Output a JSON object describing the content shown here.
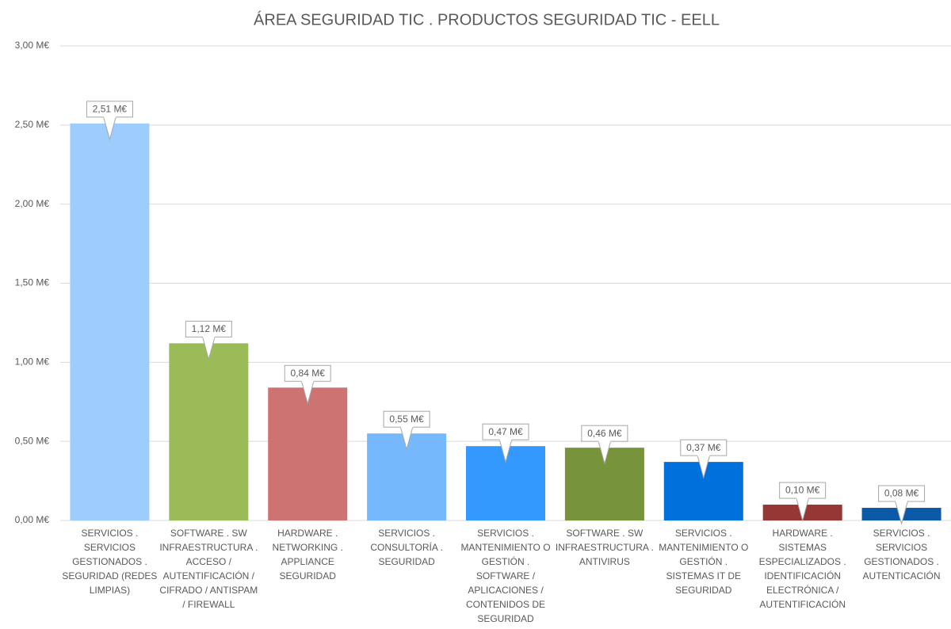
{
  "chart_data": {
    "type": "bar",
    "title": "ÁREA SEGURIDAD TIC . PRODUCTOS SEGURIDAD TIC - EELL",
    "categories": [
      "SERVICIOS . SERVICIOS GESTIONADOS . SEGURIDAD (REDES LIMPIAS)",
      "SOFTWARE . SW INFRAESTRUCTURA . ACCESO / AUTENTIFICACIÓN / CIFRADO / ANTISPAM / FIREWALL",
      "HARDWARE . NETWORKING . APPLIANCE SEGURIDAD",
      "SERVICIOS . CONSULTORÍA . SEGURIDAD",
      "SERVICIOS . MANTENIMIENTO O GESTIÓN . SOFTWARE / APLICACIONES / CONTENIDOS DE SEGURIDAD",
      "SOFTWARE . SW INFRAESTRUCTURA . ANTIVIRUS",
      "SERVICIOS . MANTENIMIENTO O GESTIÓN . SISTEMAS IT DE SEGURIDAD",
      "HARDWARE . SISTEMAS ESPECIALIZADOS . IDENTIFICACIÓN ELECTRÓNICA / AUTENTIFICACIÓN",
      "SERVICIOS . SERVICIOS GESTIONADOS . AUTENTICACIÓN"
    ],
    "values": [
      2.51,
      1.12,
      0.84,
      0.55,
      0.47,
      0.46,
      0.37,
      0.1,
      0.08
    ],
    "value_labels": [
      "2,51 M€",
      "1,12 M€",
      "0,84 M€",
      "0,55 M€",
      "0,47 M€",
      "0,46 M€",
      "0,37 M€",
      "0,10 M€",
      "0,08 M€"
    ],
    "colors": [
      "#9dcdfd",
      "#9bbb59",
      "#cd7371",
      "#75b8fc",
      "#3399ff",
      "#77933c",
      "#0070dd",
      "#953735",
      "#0a5aa8"
    ],
    "ylim": [
      0,
      3
    ],
    "yticks": [
      {
        "value": 0,
        "label": "0,00 M€"
      },
      {
        "value": 0.5,
        "label": "0,50 M€"
      },
      {
        "value": 1,
        "label": "1,00 M€"
      },
      {
        "value": 1.5,
        "label": "1,50 M€"
      },
      {
        "value": 2,
        "label": "2,00 M€"
      },
      {
        "value": 2.5,
        "label": "2,50 M€"
      },
      {
        "value": 3,
        "label": "3,00 M€"
      }
    ],
    "grid": true
  }
}
